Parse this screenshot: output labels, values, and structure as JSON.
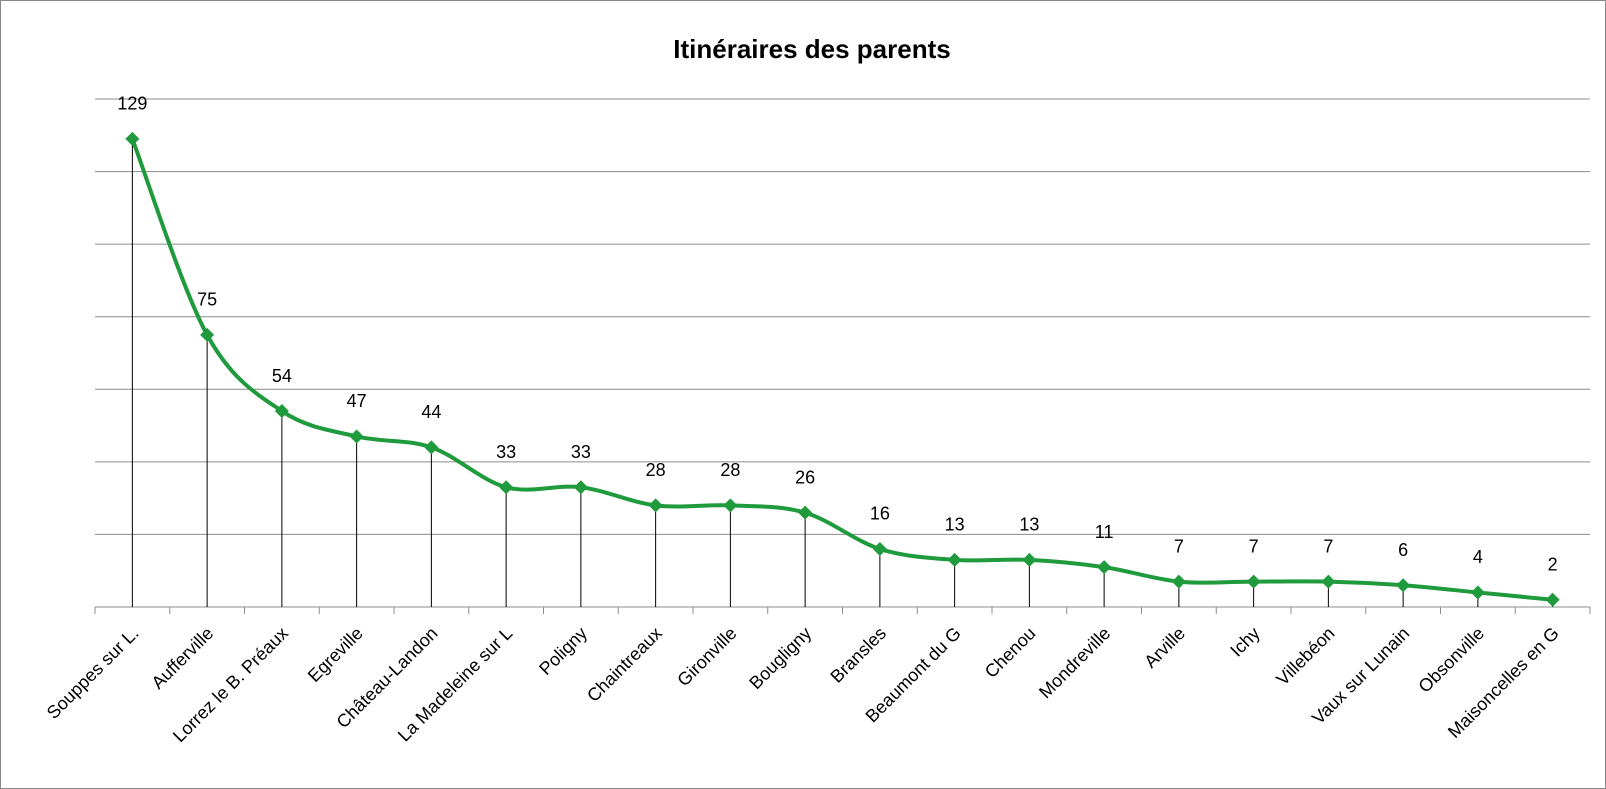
{
  "chart_data": {
    "type": "line",
    "title": "Itinéraires des parents",
    "categories": [
      "Souppes sur L.",
      "Aufferville",
      "Lorrez le B. Préaux",
      "Egreville",
      "Château-Landon",
      "La Madeleine sur L",
      "Poligny",
      "Chaintreaux",
      "Gironville",
      "Bougligny",
      "Bransles",
      "Beaumont du G",
      "Chenou",
      "Mondreville",
      "Arville",
      "Ichy",
      "Villebéon",
      "Vaux sur Lunain",
      "Obsonville",
      "Maisoncelles en G"
    ],
    "values": [
      129,
      75,
      54,
      47,
      44,
      33,
      33,
      28,
      28,
      26,
      16,
      13,
      13,
      11,
      7,
      7,
      7,
      6,
      4,
      2
    ],
    "color": "#1f9a3c",
    "ylim": [
      0,
      140
    ],
    "yticks": [
      0,
      20,
      40,
      60,
      80,
      100,
      120,
      140
    ],
    "grid": true,
    "smooth": true
  }
}
